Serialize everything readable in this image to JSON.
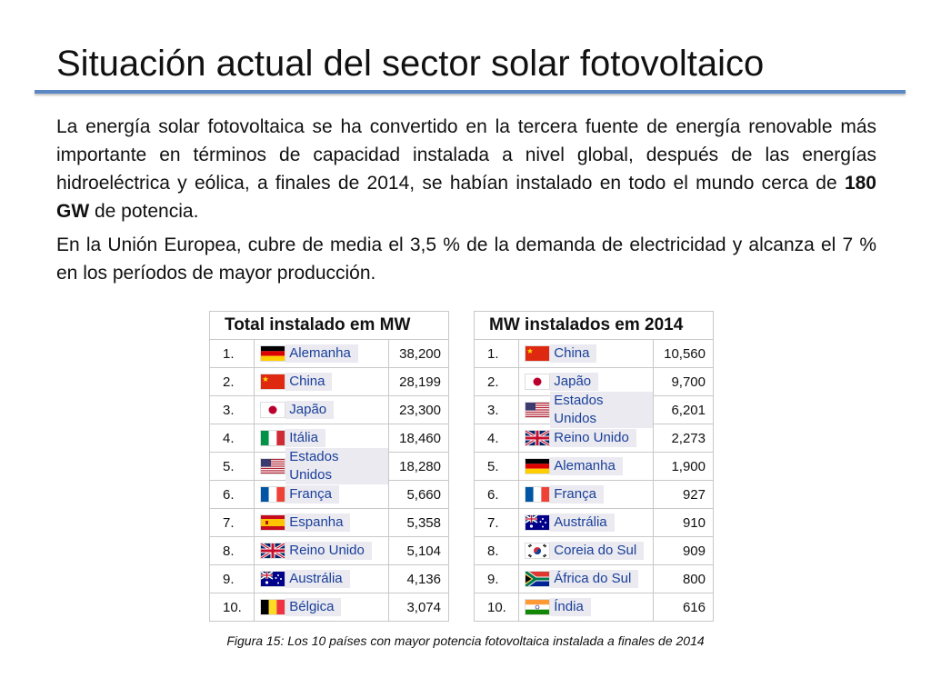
{
  "title": "Situación actual del sector solar fotovoltaico",
  "paragraph1_a": "La energía solar fotovoltaica se ha convertido en la tercera fuente de energía renovable más importante en términos de capacidad instalada a nivel global, después de las energías hidroeléctrica y eólica, a finales de 2014, se habían instalado en todo el mundo cerca de ",
  "paragraph1_bold": "180 GW",
  "paragraph1_b": " de potencia.",
  "paragraph2": "En la Unión Europea, cubre de media el 3,5 % de la demanda de electricidad y alcanza el 7 % en los períodos de mayor producción.",
  "table_total": {
    "caption": "Total instalado em MW",
    "rows": [
      {
        "rank": "1.",
        "country": "Alemanha",
        "value": "38,200",
        "flag": "germany-flag-icon"
      },
      {
        "rank": "2.",
        "country": "China",
        "value": "28,199",
        "flag": "china-flag-icon"
      },
      {
        "rank": "3.",
        "country": "Japão",
        "value": "23,300",
        "flag": "japan-flag-icon"
      },
      {
        "rank": "4.",
        "country": "Itália",
        "value": "18,460",
        "flag": "italy-flag-icon"
      },
      {
        "rank": "5.",
        "country": "Estados Unidos",
        "value": "18,280",
        "flag": "usa-flag-icon"
      },
      {
        "rank": "6.",
        "country": "França",
        "value": "5,660",
        "flag": "france-flag-icon"
      },
      {
        "rank": "7.",
        "country": "Espanha",
        "value": "5,358",
        "flag": "spain-flag-icon"
      },
      {
        "rank": "8.",
        "country": "Reino Unido",
        "value": "5,104",
        "flag": "uk-flag-icon"
      },
      {
        "rank": "9.",
        "country": "Austrália",
        "value": "4,136",
        "flag": "australia-flag-icon"
      },
      {
        "rank": "10.",
        "country": "Bélgica",
        "value": "3,074",
        "flag": "belgium-flag-icon"
      }
    ]
  },
  "table_2014": {
    "caption": "MW instalados em 2014",
    "rows": [
      {
        "rank": "1.",
        "country": "China",
        "value": "10,560",
        "flag": "china-flag-icon"
      },
      {
        "rank": "2.",
        "country": "Japão",
        "value": "9,700",
        "flag": "japan-flag-icon"
      },
      {
        "rank": "3.",
        "country": "Estados Unidos",
        "value": "6,201",
        "flag": "usa-flag-icon"
      },
      {
        "rank": "4.",
        "country": "Reino Unido",
        "value": "2,273",
        "flag": "uk-flag-icon"
      },
      {
        "rank": "5.",
        "country": "Alemanha",
        "value": "1,900",
        "flag": "germany-flag-icon"
      },
      {
        "rank": "6.",
        "country": "França",
        "value": "927",
        "flag": "france-flag-icon"
      },
      {
        "rank": "7.",
        "country": "Austrália",
        "value": "910",
        "flag": "australia-flag-icon"
      },
      {
        "rank": "8.",
        "country": "Coreia do Sul",
        "value": "909",
        "flag": "south-korea-flag-icon"
      },
      {
        "rank": "9.",
        "country": "África do Sul",
        "value": "800",
        "flag": "south-africa-flag-icon"
      },
      {
        "rank": "10.",
        "country": "Índia",
        "value": "616",
        "flag": "india-flag-icon"
      }
    ]
  },
  "figure_caption": "Figura 15: Los 10 países con mayor potencia fotovoltaica instalada  a finales de 2014"
}
